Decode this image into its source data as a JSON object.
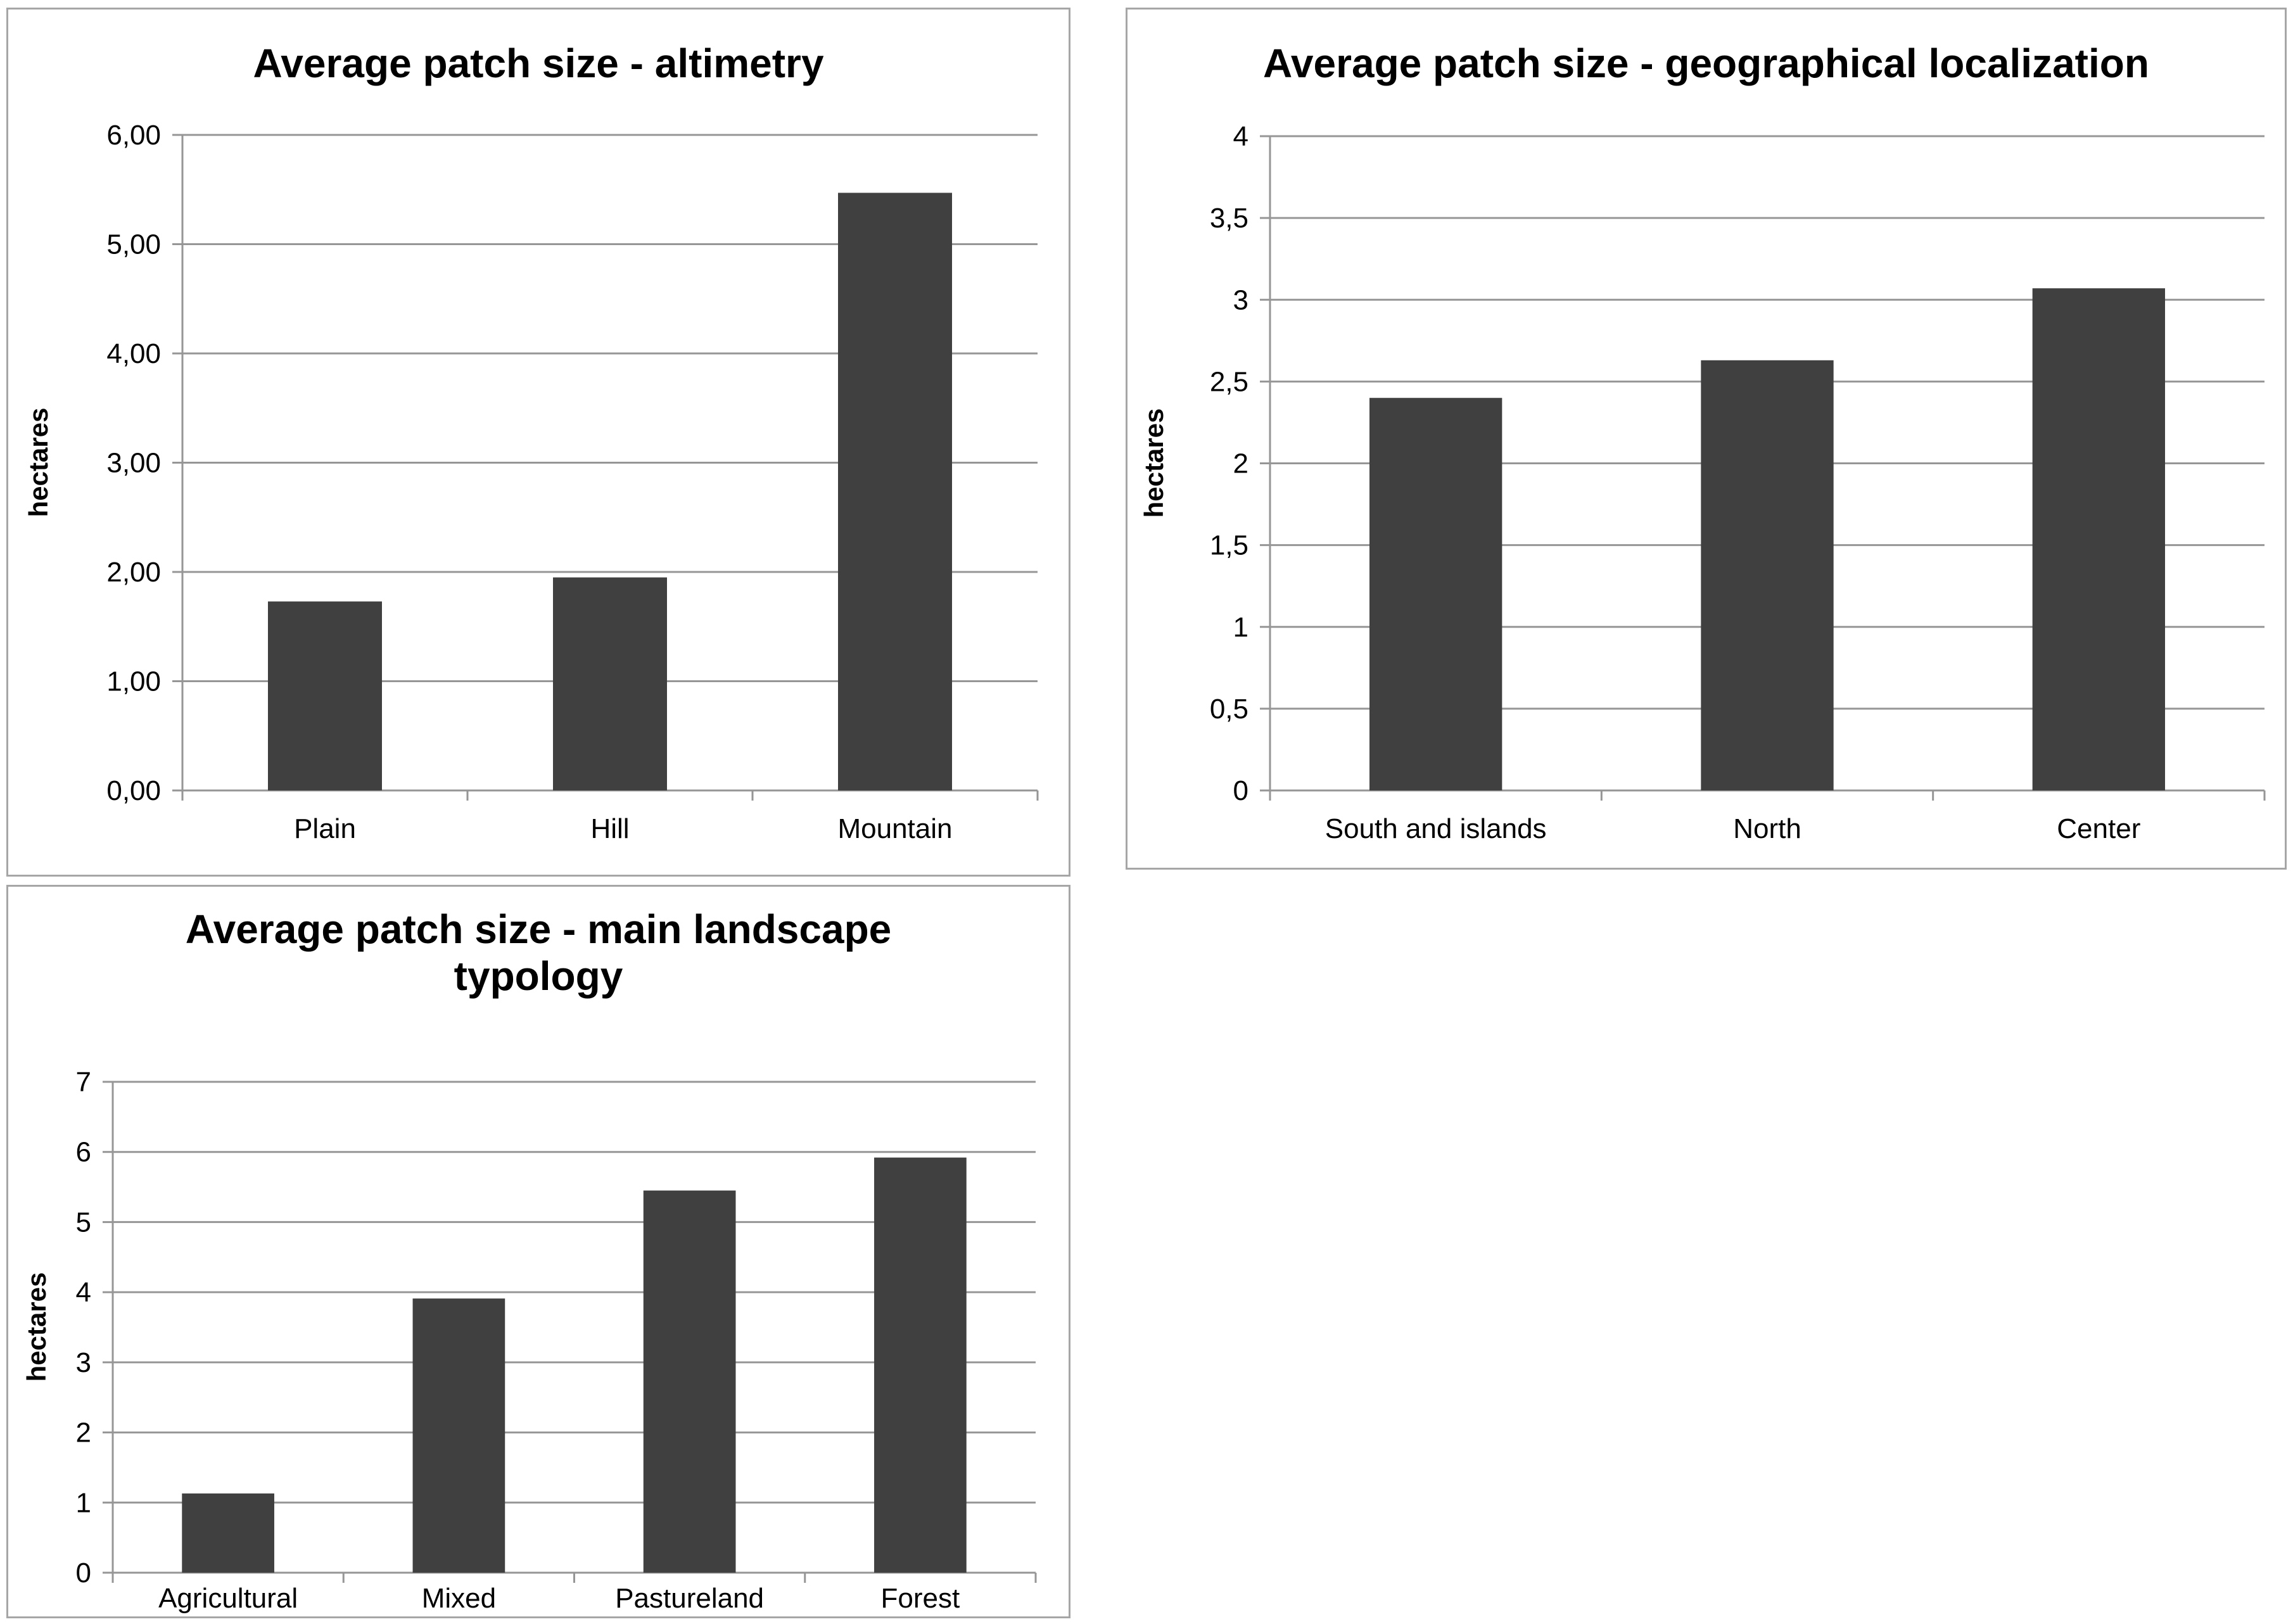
{
  "page": {
    "background": "#ffffff"
  },
  "colors": {
    "bar": "#404040",
    "gridline": "#969696",
    "axis_line": "#969696",
    "panel_border": "#a6a6a6",
    "text": "#000000"
  },
  "chart_data": [
    {
      "type": "bar",
      "title": "Average patch size - altimetry",
      "ylabel": "hectares",
      "xlabel": "",
      "categories": [
        "Plain",
        "Hill",
        "Mountain"
      ],
      "values": [
        1.73,
        1.95,
        5.47
      ],
      "ylim": [
        0,
        6
      ],
      "yticks": [
        0,
        1,
        2,
        3,
        4,
        5,
        6
      ],
      "ytick_labels": [
        "0,00",
        "1,00",
        "2,00",
        "3,00",
        "4,00",
        "5,00",
        "6,00"
      ],
      "grid": true,
      "legend": "none"
    },
    {
      "type": "bar",
      "title": "Average patch size - geographical localization",
      "ylabel": "hectares",
      "xlabel": "",
      "categories": [
        "South and islands",
        "North",
        "Center"
      ],
      "values": [
        2.4,
        2.63,
        3.07
      ],
      "ylim": [
        0,
        4
      ],
      "yticks": [
        0,
        0.5,
        1,
        1.5,
        2,
        2.5,
        3,
        3.5,
        4
      ],
      "ytick_labels": [
        "0",
        "0,5",
        "1",
        "1,5",
        "2",
        "2,5",
        "3",
        "3,5",
        "4"
      ],
      "grid": true,
      "legend": "none"
    },
    {
      "type": "bar",
      "title": "Average patch size - main landscape typology",
      "ylabel": "hectares",
      "xlabel": "",
      "categories": [
        "Agricultural",
        "Mixed",
        "Pastureland",
        "Forest"
      ],
      "values": [
        1.13,
        3.91,
        5.45,
        5.92
      ],
      "ylim": [
        0,
        7
      ],
      "yticks": [
        0,
        1,
        2,
        3,
        4,
        5,
        6,
        7
      ],
      "ytick_labels": [
        "0",
        "1",
        "2",
        "3",
        "4",
        "5",
        "6",
        "7"
      ],
      "grid": true,
      "legend": "none"
    }
  ]
}
